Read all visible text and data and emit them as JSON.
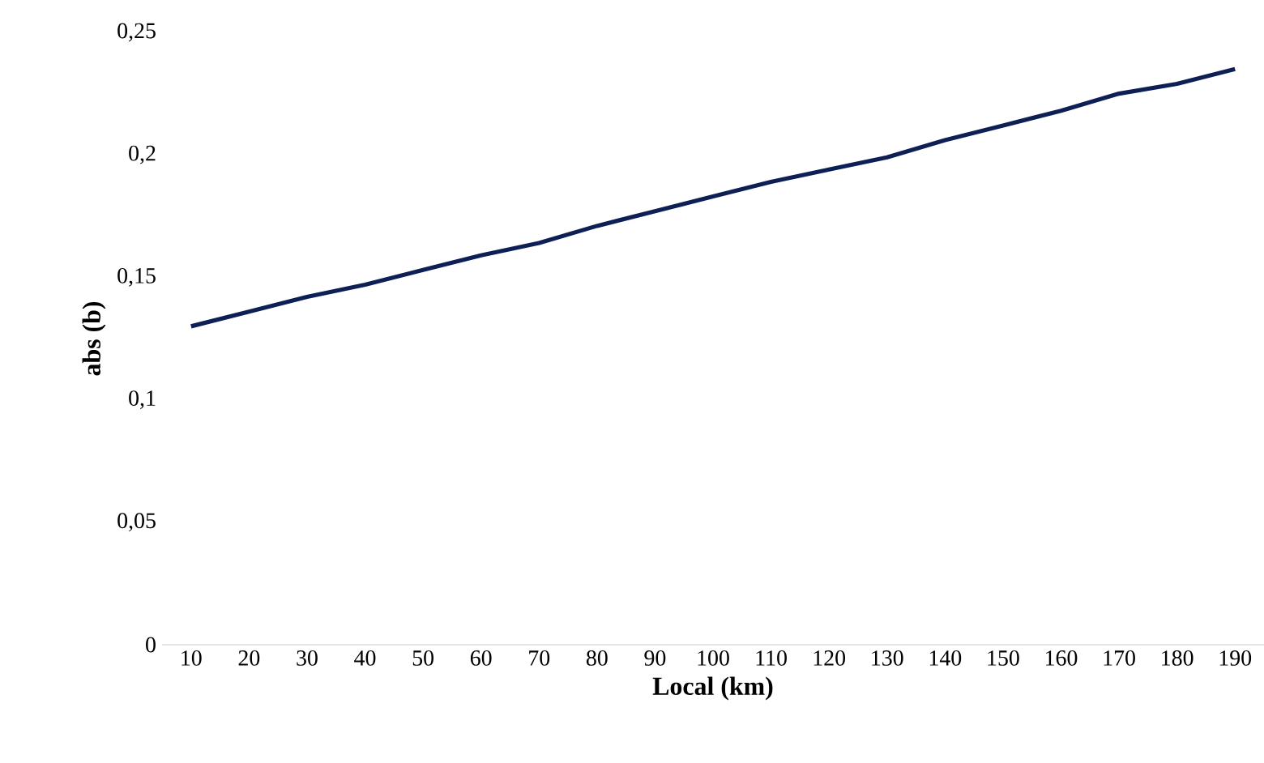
{
  "chart_data": {
    "type": "line",
    "xlabel": "Local (km)",
    "ylabel": "abs (b)",
    "categories": [
      "10",
      "20",
      "30",
      "40",
      "50",
      "60",
      "70",
      "80",
      "90",
      "100",
      "110",
      "120",
      "130",
      "140",
      "150",
      "160",
      "170",
      "180",
      "190"
    ],
    "series": [
      {
        "color": "#0d1f55",
        "values": [
          0.13,
          0.136,
          0.142,
          0.147,
          0.153,
          0.159,
          0.164,
          0.171,
          0.177,
          0.183,
          0.189,
          0.194,
          0.199,
          0.206,
          0.212,
          0.218,
          0.225,
          0.229,
          0.235
        ]
      }
    ],
    "ylim": [
      0,
      0.25
    ],
    "yticks": [
      0,
      {
        "value": 0.05,
        "label": "0,05"
      },
      {
        "value": 0.1,
        "label": "0,1"
      },
      {
        "value": 0.15,
        "label": "0,15"
      },
      {
        "value": 0.2,
        "label": "0,2"
      },
      {
        "value": 0.25,
        "label": "0,25"
      }
    ],
    "grid": false,
    "legend": false,
    "marker": "none",
    "line_style": "solid"
  }
}
